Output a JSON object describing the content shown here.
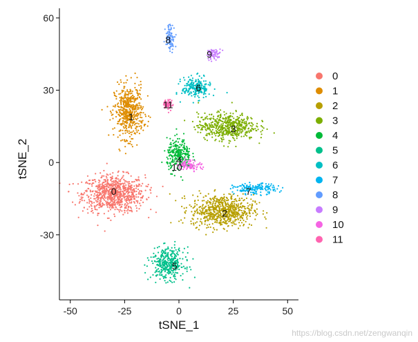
{
  "chart_data": {
    "type": "scatter",
    "title": "",
    "xlabel": "tSNE_1",
    "ylabel": "tSNE_2",
    "xlim": [
      -55,
      55
    ],
    "ylim": [
      -57,
      64
    ],
    "xticks": [
      -50,
      -25,
      0,
      25,
      50
    ],
    "yticks": [
      -30,
      0,
      30,
      60
    ],
    "legend_position": "right",
    "clusters": [
      {
        "name": "0",
        "color": "#F8766D",
        "label": "0",
        "label_x": -30,
        "label_y": -12,
        "center": [
          -30,
          -13
        ],
        "spread": [
          13,
          7
        ]
      },
      {
        "name": "1",
        "color": "#DE8C00",
        "label": "1",
        "label_x": -22,
        "label_y": 19,
        "center": [
          -23,
          21
        ],
        "spread": [
          6,
          10
        ]
      },
      {
        "name": "2",
        "color": "#B79F00",
        "label": "2",
        "label_x": 21,
        "label_y": -21,
        "center": [
          20,
          -20
        ],
        "spread": [
          13,
          6
        ]
      },
      {
        "name": "3",
        "color": "#7CAE00",
        "label": "3",
        "label_x": 25,
        "label_y": 14,
        "center": [
          22,
          15
        ],
        "spread": [
          12,
          5
        ]
      },
      {
        "name": "4",
        "color": "#00BA38",
        "label": "4",
        "label_x": 0,
        "label_y": 1,
        "center": [
          0,
          3
        ],
        "spread": [
          5,
          6
        ]
      },
      {
        "name": "5",
        "color": "#00C08B",
        "label": "5",
        "label_x": -2,
        "label_y": -43,
        "center": [
          -5,
          -42
        ],
        "spread": [
          7,
          6
        ]
      },
      {
        "name": "6",
        "color": "#00BFC4",
        "label": "6",
        "label_x": 9,
        "label_y": 31,
        "center": [
          8,
          31
        ],
        "spread": [
          6,
          4
        ]
      },
      {
        "name": "7",
        "color": "#00B4F0",
        "label": "7",
        "label_x": 32,
        "label_y": -12,
        "center": [
          35,
          -11
        ],
        "spread": [
          9,
          2
        ]
      },
      {
        "name": "8",
        "color": "#619CFF",
        "label": "8",
        "label_x": -5,
        "label_y": 51,
        "center": [
          -4,
          52
        ],
        "spread": [
          2,
          5
        ]
      },
      {
        "name": "9",
        "color": "#C77CFF",
        "label": "9",
        "label_x": 14,
        "label_y": 45,
        "center": [
          16,
          45
        ],
        "spread": [
          3,
          2
        ]
      },
      {
        "name": "10",
        "color": "#F564E3",
        "label": "10",
        "label_x": -1,
        "label_y": -2,
        "center": [
          5,
          -1
        ],
        "spread": [
          5,
          2
        ]
      },
      {
        "name": "11",
        "color": "#FF64B0",
        "label": "11",
        "label_x": -5,
        "label_y": 24,
        "center": [
          -5,
          24
        ],
        "spread": [
          2,
          2
        ]
      }
    ]
  },
  "watermark": "https://blog.csdn.net/zengwanqin"
}
